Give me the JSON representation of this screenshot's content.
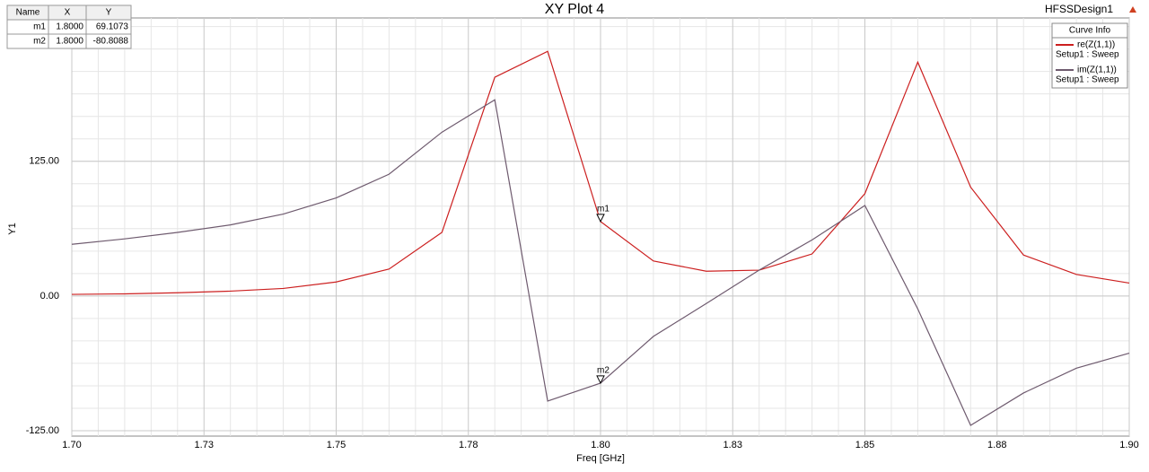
{
  "chart_data": {
    "type": "line",
    "title": "XY Plot 4",
    "design": "HFSSDesign1",
    "x_label": "Freq [GHz]",
    "y_label": "Y1",
    "x": [
      1.7,
      1.71,
      1.72,
      1.73,
      1.74,
      1.75,
      1.76,
      1.77,
      1.78,
      1.79,
      1.8,
      1.81,
      1.82,
      1.83,
      1.84,
      1.85,
      1.86,
      1.87,
      1.88,
      1.89,
      1.9
    ],
    "series": [
      {
        "name": "re(Z(1,1))",
        "sweep": "Setup1 : Sweep",
        "color": "#cc1f1f",
        "values": [
          1.5,
          2,
          3,
          4.5,
          7,
          13,
          25,
          59,
          203,
          227,
          69.1073,
          32.5,
          23,
          24,
          39,
          95,
          217,
          101,
          38,
          20,
          12
        ]
      },
      {
        "name": "im(Z(1,1))",
        "sweep": "Setup1 : Sweep",
        "color": "#6e5a6e",
        "values": [
          48,
          53,
          59,
          66,
          76,
          91,
          113,
          152,
          182,
          -97.5,
          -80.8088,
          -37.5,
          -7,
          24,
          52,
          84,
          -12,
          -120,
          -90,
          -67,
          -53
        ]
      }
    ],
    "legend_title": "Curve Info",
    "xlim": [
      1.7,
      1.9
    ],
    "xticks": [
      {
        "value": 1.7,
        "label": "1.70"
      },
      {
        "value": 1.725,
        "label": "1.73"
      },
      {
        "value": 1.75,
        "label": "1.75"
      },
      {
        "value": 1.775,
        "label": "1.78"
      },
      {
        "value": 1.8,
        "label": "1.80"
      },
      {
        "value": 1.825,
        "label": "1.83"
      },
      {
        "value": 1.85,
        "label": "1.85"
      },
      {
        "value": 1.875,
        "label": "1.88"
      },
      {
        "value": 1.9,
        "label": "1.90"
      }
    ],
    "ylim": [
      -130,
      258
    ],
    "yticks": [
      {
        "value": -125,
        "label": "-125.00"
      },
      {
        "value": 0,
        "label": "0.00"
      },
      {
        "value": 125,
        "label": "125.00"
      }
    ],
    "grid": true,
    "markers": [
      {
        "name": "m1",
        "series": 0,
        "index": 10
      },
      {
        "name": "m2",
        "series": 1,
        "index": 10
      }
    ],
    "marker_table": {
      "columns": [
        "Name",
        "X",
        "Y"
      ],
      "rows": [
        [
          "m1",
          "1.8000",
          "69.1073"
        ],
        [
          "m2",
          "1.8000",
          "-80.8088"
        ]
      ]
    }
  }
}
